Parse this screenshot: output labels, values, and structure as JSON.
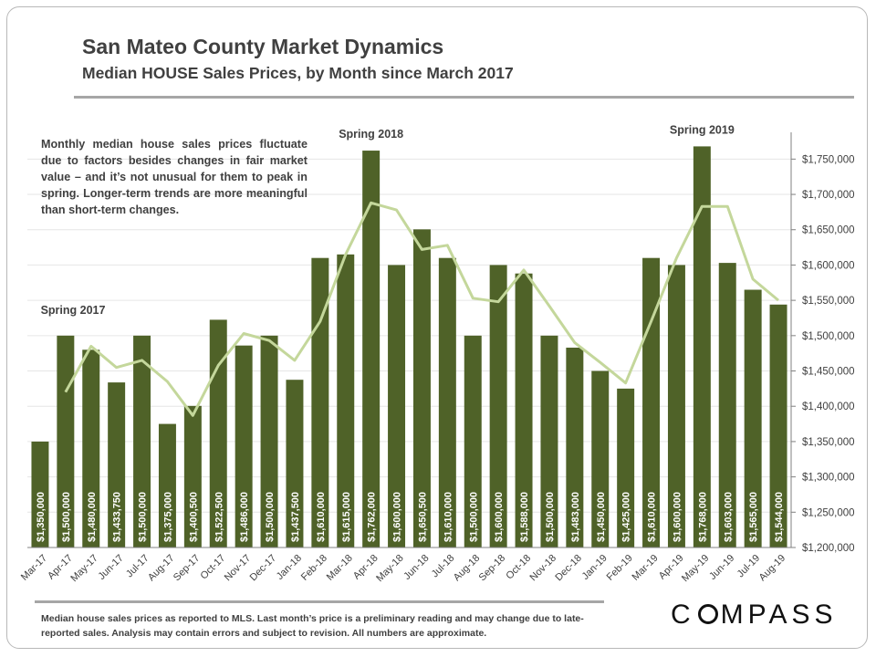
{
  "page": {
    "title": "San Mateo County Market Dynamics",
    "subtitle": "Median HOUSE Sales Prices, by Month since March 2017",
    "note": "Monthly median house sales prices fluctuate due to factors besides changes in fair market value – and it’s not unusual for them to peak in spring. Longer-term trends are more meaningful than short-term changes.",
    "footer": "Median house sales prices as reported to MLS. Last month’s price is a preliminary reading and may change due to late-reported sales. Analysis may contain errors and subject to revision. All numbers are approximate.",
    "logo_left": "C",
    "logo_right": "MPASS"
  },
  "colors": {
    "bar": "#4f6228",
    "bar_label": "#ffffff",
    "trend_line": "#c4d79b",
    "axis_text": "#404040"
  },
  "chart_data": {
    "type": "bar",
    "categories": [
      "Mar-17",
      "Apr-17",
      "May-17",
      "Jun-17",
      "Jul-17",
      "Aug-17",
      "Sep-17",
      "Oct-17",
      "Nov-17",
      "Dec-17",
      "Jan-18",
      "Feb-18",
      "Mar-18",
      "Apr-18",
      "May-18",
      "Jun-18",
      "Jul-18",
      "Aug-18",
      "Sep-18",
      "Oct-18",
      "Nov-18",
      "Dec-18",
      "Jan-19",
      "Feb-19",
      "Mar-19",
      "Apr-19",
      "May-19",
      "Jun-19",
      "Jul-19",
      "Aug-19"
    ],
    "series": [
      {
        "values": [
          1350000,
          1500000,
          1480000,
          1433750,
          1500000,
          1375000,
          1400500,
          1522500,
          1486000,
          1500000,
          1437500,
          1610000,
          1615000,
          1762000,
          1600000,
          1650500,
          1610000,
          1500000,
          1600000,
          1588000,
          1500000,
          1483000,
          1450000,
          1425000,
          1610000,
          1600000,
          1768000,
          1603000,
          1565000,
          1544000
        ],
        "labels": [
          "$1,350,000",
          "$1,500,000",
          "$1,480,000",
          "$1,433,750",
          "$1,500,000",
          "$1,375,000",
          "$1,400,500",
          "$1,522,500",
          "$1,486,000",
          "$1,500,000",
          "$1,437,500",
          "$1,610,000",
          "$1,615,000",
          "$1,762,000",
          "$1,600,000",
          "$1,650,500",
          "$1,610,000",
          "$1,500,000",
          "$1,600,000",
          "$1,588,000",
          "$1,500,000",
          "$1,483,000",
          "$1,450,000",
          "$1,425,000",
          "$1,610,000",
          "$1,600,000",
          "$1,768,000",
          "$1,603,000",
          "$1,565,000",
          "$1,544,000"
        ]
      },
      {
        "type": "line",
        "values": [
          null,
          1420000,
          1485000,
          1455000,
          1465000,
          1435000,
          1387000,
          1458000,
          1503000,
          1493000,
          1465000,
          1520000,
          1615000,
          1688000,
          1678000,
          1622000,
          1628000,
          1553000,
          1548000,
          1593000,
          1542000,
          1490000,
          1462000,
          1433000,
          1520000,
          1610000,
          1683000,
          1683000,
          1580000,
          1550000
        ]
      }
    ],
    "ylim": [
      1200000,
      1775000
    ],
    "yticks": [
      1200000,
      1250000,
      1300000,
      1350000,
      1400000,
      1450000,
      1500000,
      1550000,
      1600000,
      1650000,
      1700000,
      1750000
    ],
    "ytick_labels": [
      "$1,200,000",
      "$1,250,000",
      "$1,300,000",
      "$1,350,000",
      "$1,400,000",
      "$1,450,000",
      "$1,500,000",
      "$1,550,000",
      "$1,600,000",
      "$1,650,000",
      "$1,700,000",
      "$1,750,000"
    ],
    "axis_side": "right",
    "annotations": [
      {
        "text": "Spring 2017",
        "category": "Mar-17"
      },
      {
        "text": "Spring 2018",
        "category": "Apr-18"
      },
      {
        "text": "Spring 2019",
        "category": "May-19"
      }
    ]
  }
}
